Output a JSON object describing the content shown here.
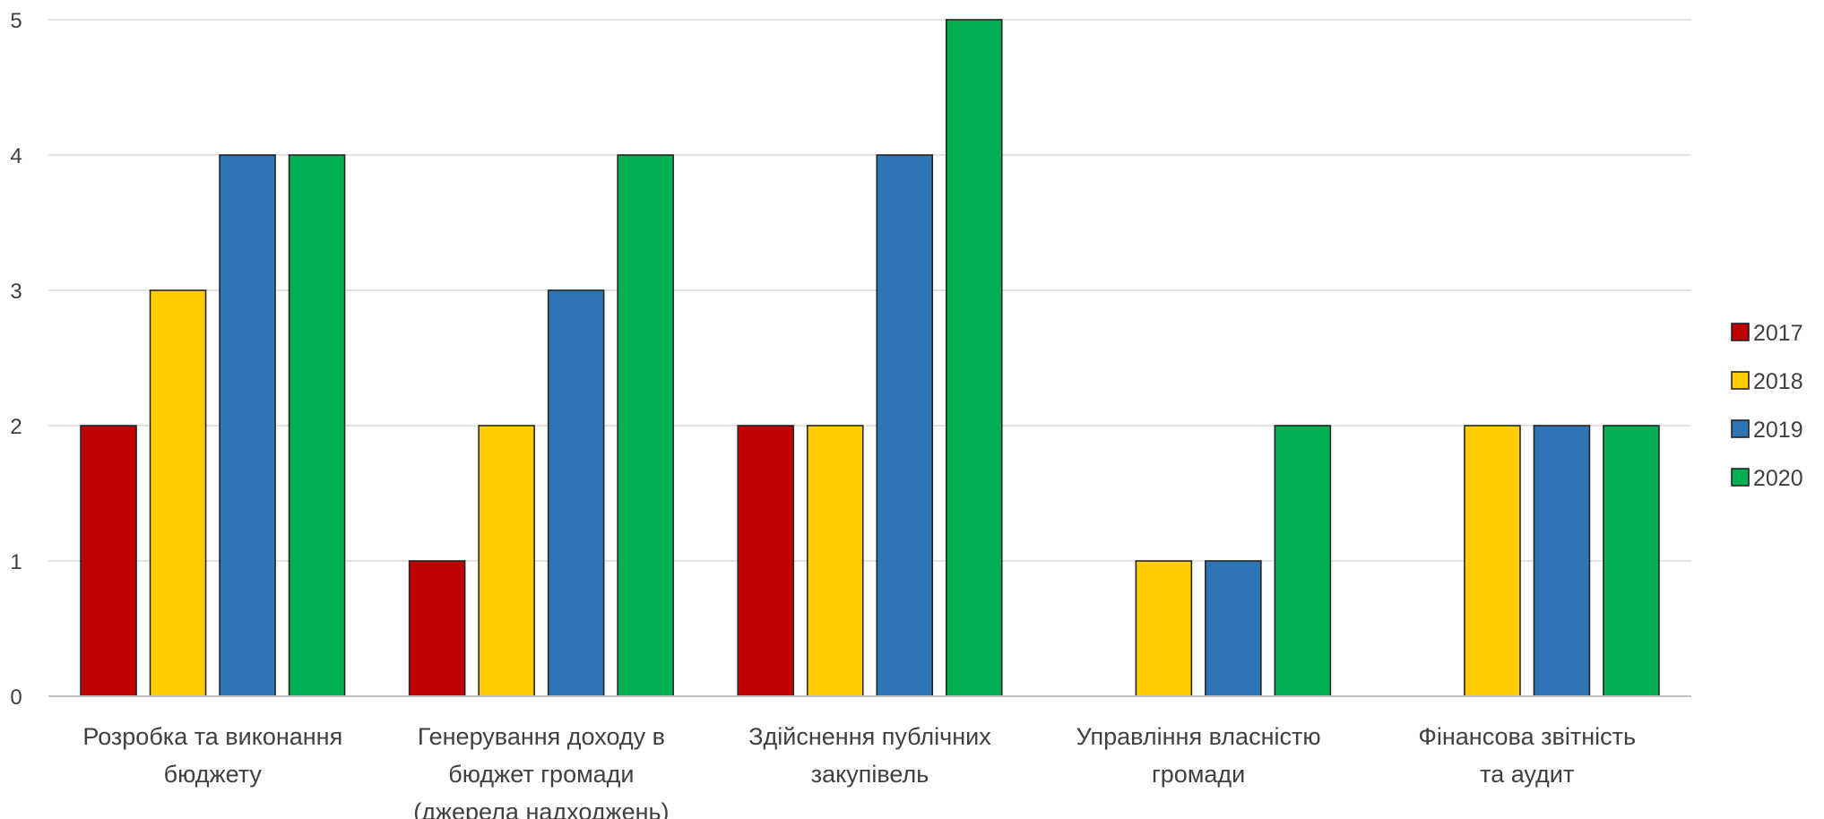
{
  "chart_data": {
    "type": "bar",
    "title": "",
    "xlabel": "",
    "ylabel": "",
    "ylim": [
      0,
      5
    ],
    "yticks": [
      "0",
      "1",
      "2",
      "3",
      "4",
      "5"
    ],
    "grid": true,
    "legend_position": "right",
    "categories": [
      [
        "Розробка та виконання",
        "бюджету"
      ],
      [
        "Генерування доходу в",
        "бюджет громади",
        "(джерела надходжень)"
      ],
      [
        "Здійснення публічних",
        "закупівель"
      ],
      [
        "Управління власністю",
        "громади"
      ],
      [
        "Фінансова звітність",
        "та аудит"
      ]
    ],
    "series": [
      {
        "name": "2017",
        "color": "#c00000",
        "values": [
          2,
          1,
          2,
          0,
          0
        ]
      },
      {
        "name": "2018",
        "color": "#ffcc00",
        "values": [
          3,
          2,
          2,
          1,
          2
        ]
      },
      {
        "name": "2019",
        "color": "#2e75b6",
        "values": [
          4,
          3,
          4,
          1,
          2
        ]
      },
      {
        "name": "2020",
        "color": "#00b050",
        "values": [
          4,
          4,
          5,
          2,
          2
        ]
      }
    ]
  }
}
